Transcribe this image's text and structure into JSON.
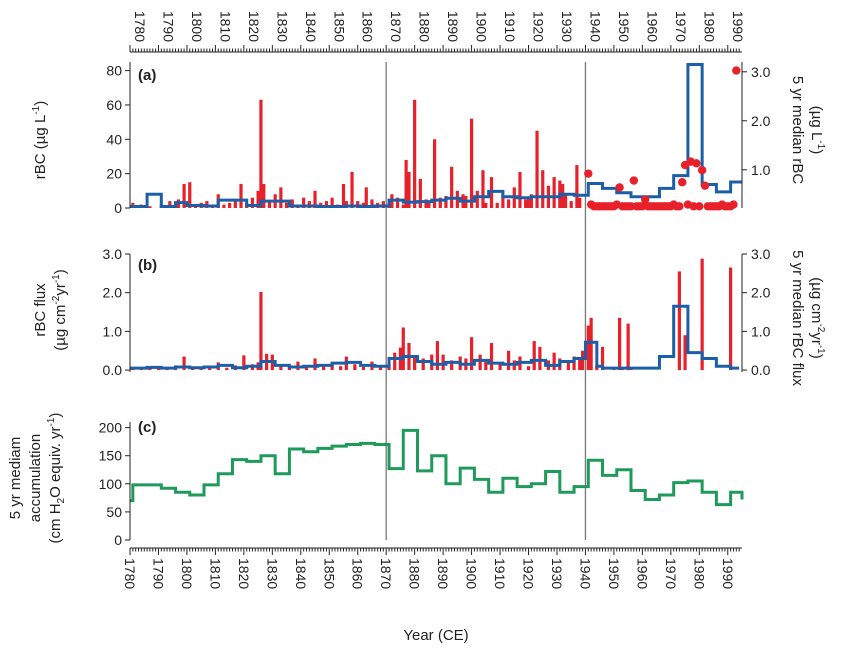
{
  "chart_data": {
    "type": "line",
    "xlabel": "Year (CE)",
    "xlim": [
      1780,
      1995
    ],
    "x_ticks": [
      "1780",
      "1790",
      "1800",
      "1810",
      "1820",
      "1830",
      "1840",
      "1850",
      "1860",
      "1870",
      "1880",
      "1890",
      "1900",
      "1910",
      "1920",
      "1930",
      "1940",
      "1950",
      "1960",
      "1970",
      "1980",
      "1990"
    ],
    "vlines": [
      1870,
      1940
    ],
    "colors": {
      "rbc": "#e8202a",
      "median": "#1b5fa8",
      "accum": "#1e9a5a"
    },
    "panels": [
      {
        "tag": "(a)",
        "ylabel_left": "rBC (µg L",
        "ylabel_left_sup": "-1",
        "ylabel_left_end": ")",
        "ylabel_right_1": "5 yr median rBC",
        "ylabel_right_2": "(µg L",
        "ylabel_right_2_sup": "-1",
        "ylabel_right_2_end": ")",
        "ylim_left": [
          0,
          85
        ],
        "yticks_left": [
          "0",
          "20",
          "40",
          "60",
          "80"
        ],
        "ylim_right": [
          0.22,
          3.2
        ],
        "yticks_right": [
          "1.0",
          "2.0",
          "3.0"
        ],
        "series": [
          {
            "kind": "bars",
            "axis": "left",
            "x": [
              1781,
              1784,
              1787,
              1791,
              1794,
              1797,
              1799,
              1801,
              1803,
              1805,
              1807,
              1809,
              1811,
              1813,
              1815,
              1817,
              1819,
              1821,
              1823,
              1825,
              1826,
              1827,
              1829,
              1831,
              1833,
              1835,
              1837,
              1839,
              1841,
              1843,
              1845,
              1847,
              1849,
              1851,
              1853,
              1855,
              1856,
              1858,
              1860,
              1862,
              1863,
              1865,
              1867,
              1869,
              1871,
              1872,
              1874,
              1876,
              1877,
              1878,
              1880,
              1882,
              1884,
              1885,
              1887,
              1889,
              1891,
              1893,
              1895,
              1897,
              1898,
              1900,
              1902,
              1904,
              1905,
              1907,
              1909,
              1911,
              1913,
              1915,
              1917,
              1919,
              1920,
              1921,
              1923,
              1925,
              1927,
              1929,
              1931,
              1932,
              1933,
              1935,
              1937,
              1938
            ],
            "y": [
              3,
              2,
              1,
              2,
              4,
              5,
              14,
              15,
              2,
              3,
              4,
              2,
              8,
              2,
              3,
              5,
              14,
              3,
              6,
              10,
              63,
              14,
              4,
              8,
              12,
              3,
              5,
              2,
              6,
              4,
              10,
              3,
              4,
              6,
              2,
              14,
              4,
              21,
              4,
              3,
              12,
              5,
              3,
              4,
              3,
              8,
              6,
              2,
              28,
              21,
              63,
              17,
              5,
              3,
              40,
              6,
              7,
              24,
              10,
              8,
              7,
              52,
              10,
              22,
              3,
              18,
              3,
              8,
              5,
              12,
              21,
              5,
              6,
              8,
              45,
              22,
              13,
              18,
              16,
              14,
              8,
              4,
              25,
              6
            ],
            "series_color": "rbc"
          },
          {
            "kind": "points",
            "axis": "left",
            "x": [
              1941,
              1942,
              1943,
              1944,
              1945,
              1946,
              1947,
              1948,
              1949,
              1950,
              1951,
              1952,
              1953,
              1954,
              1955,
              1956,
              1957,
              1958,
              1959,
              1960,
              1961,
              1962,
              1963,
              1964,
              1965,
              1966,
              1967,
              1968,
              1969,
              1970,
              1971,
              1972,
              1973,
              1974,
              1975,
              1976,
              1977,
              1978,
              1979,
              1980,
              1981,
              1982,
              1983,
              1984,
              1985,
              1986,
              1987,
              1988,
              1989,
              1990,
              1991,
              1992,
              1993
            ],
            "y": [
              20,
              2,
              1,
              1,
              1,
              1,
              1,
              1,
              1,
              1,
              2,
              12,
              1,
              1,
              1,
              1,
              16,
              1,
              1,
              1,
              5,
              1,
              1,
              1,
              1,
              1,
              1,
              1,
              1,
              1,
              2,
              1,
              1,
              15,
              25,
              2,
              27,
              1,
              26,
              1,
              22,
              13,
              1,
              1,
              1,
              1,
              1,
              2,
              1,
              1,
              1,
              2,
              80
            ],
            "series_color": "rbc"
          },
          {
            "kind": "step",
            "axis": "right",
            "x": [
              1780,
              1782,
              1786,
              1791,
              1796,
              1800,
              1806,
              1811,
              1816,
              1821,
              1826,
              1831,
              1836,
              1841,
              1846,
              1851,
              1856,
              1861,
              1866,
              1871,
              1876,
              1881,
              1886,
              1891,
              1896,
              1901,
              1906,
              1911,
              1916,
              1921,
              1926,
              1931,
              1936,
              1941,
              1946,
              1951,
              1956,
              1961,
              1966,
              1971,
              1976,
              1981,
              1986,
              1991,
              1995
            ],
            "y": [
              0.25,
              0.25,
              0.5,
              0.25,
              0.33,
              0.27,
              0.26,
              0.38,
              0.38,
              0.27,
              0.36,
              0.36,
              0.26,
              0.26,
              0.25,
              0.25,
              0.26,
              0.25,
              0.26,
              0.38,
              0.34,
              0.35,
              0.38,
              0.42,
              0.36,
              0.45,
              0.56,
              0.45,
              0.43,
              0.45,
              0.45,
              0.5,
              0.48,
              0.72,
              0.62,
              0.53,
              0.45,
              0.45,
              0.62,
              0.88,
              3.15,
              0.7,
              0.55,
              0.75,
              0.75
            ],
            "series_color": "median"
          }
        ]
      },
      {
        "tag": "(b)",
        "ylabel_left_1": "rBC flux",
        "ylabel_left_2": "(µg cm",
        "ylabel_left_2_sup1": "-2",
        "ylabel_left_2_mid": "yr",
        "ylabel_left_2_sup2": "-1",
        "ylabel_left_2_end": ")",
        "ylabel_right_1": "5 yr median rBC flux",
        "ylabel_right_2": "(µg cm",
        "ylabel_right_2_sup1": "-2",
        "ylabel_right_2_mid": "yr",
        "ylabel_right_2_sup2": "-1",
        "ylabel_right_2_end": ")",
        "ylim_left": [
          -0.05,
          3.0
        ],
        "yticks_left": [
          "0.0",
          "1.0",
          "2.0",
          "3.0"
        ],
        "ylim_right": [
          -0.05,
          3.0
        ],
        "yticks_right": [
          "0.0",
          "1.0",
          "2.0",
          "3.0"
        ],
        "series": [
          {
            "kind": "bars",
            "axis": "left",
            "x": [
              1781,
              1784,
              1787,
              1790,
              1793,
              1796,
              1799,
              1802,
              1805,
              1808,
              1811,
              1814,
              1817,
              1820,
              1823,
              1825,
              1826,
              1828,
              1830,
              1833,
              1836,
              1839,
              1842,
              1845,
              1848,
              1851,
              1854,
              1856,
              1859,
              1862,
              1865,
              1868,
              1871,
              1873,
              1875,
              1876,
              1878,
              1880,
              1883,
              1886,
              1888,
              1890,
              1893,
              1896,
              1898,
              1900,
              1903,
              1905,
              1907,
              1910,
              1913,
              1915,
              1917,
              1920,
              1922,
              1924,
              1927,
              1929,
              1931,
              1934,
              1936,
              1938,
              1939,
              1941,
              1942,
              1944,
              1946,
              1950,
              1952,
              1953,
              1955,
              1956,
              1973,
              1975,
              1981,
              1991
            ],
            "y": [
              0.05,
              0.03,
              0.06,
              0.1,
              0.05,
              0.12,
              0.35,
              0.08,
              0.06,
              0.1,
              0.2,
              0.06,
              0.12,
              0.38,
              0.15,
              0.2,
              2.02,
              0.42,
              0.4,
              0.1,
              0.08,
              0.22,
              0.12,
              0.3,
              0.1,
              0.18,
              0.1,
              0.35,
              0.15,
              0.08,
              0.22,
              0.1,
              0.15,
              0.45,
              0.58,
              1.1,
              0.7,
              0.35,
              0.3,
              0.4,
              0.75,
              0.4,
              0.25,
              0.35,
              0.3,
              0.85,
              0.4,
              0.25,
              0.7,
              0.15,
              0.5,
              0.25,
              0.35,
              0.1,
              0.75,
              0.6,
              0.25,
              0.45,
              0.3,
              0.2,
              0.35,
              0.3,
              0.5,
              1.15,
              1.35,
              0.1,
              0.6,
              0.05,
              1.35,
              0.05,
              1.2,
              0.05,
              2.55,
              0.9,
              2.88,
              2.65
            ],
            "series_color": "rbc"
          },
          {
            "kind": "step",
            "axis": "right",
            "x": [
              1780,
              1786,
              1791,
              1796,
              1801,
              1806,
              1811,
              1816,
              1821,
              1826,
              1831,
              1836,
              1841,
              1846,
              1851,
              1856,
              1861,
              1866,
              1871,
              1876,
              1881,
              1886,
              1891,
              1896,
              1901,
              1906,
              1911,
              1916,
              1921,
              1926,
              1931,
              1936,
              1940,
              1944,
              1946,
              1951,
              1956,
              1961,
              1966,
              1971,
              1976,
              1981,
              1986,
              1991,
              1994
            ],
            "y": [
              0.05,
              0.07,
              0.05,
              0.08,
              0.06,
              0.08,
              0.12,
              0.06,
              0.1,
              0.22,
              0.12,
              0.08,
              0.1,
              0.12,
              0.18,
              0.2,
              0.12,
              0.1,
              0.3,
              0.35,
              0.22,
              0.15,
              0.2,
              0.15,
              0.25,
              0.18,
              0.15,
              0.2,
              0.25,
              0.12,
              0.22,
              0.3,
              0.72,
              0.1,
              0.05,
              0.05,
              0.05,
              0.05,
              0.35,
              1.65,
              0.45,
              0.3,
              0.1,
              0.05,
              0.05
            ],
            "series_color": "median"
          }
        ]
      },
      {
        "tag": "(c)",
        "ylabel_left_1": "5 yr mediam",
        "ylabel_left_2": "accumulation",
        "ylabel_left_3": "(cm H",
        "ylabel_left_3_sub": "2",
        "ylabel_left_3_mid": "O equiv. yr",
        "ylabel_left_3_sup": "-1",
        "ylabel_left_3_end": ")",
        "ylim_left": [
          0,
          210
        ],
        "yticks_left": [
          "0",
          "50",
          "100",
          "150",
          "200"
        ],
        "series": [
          {
            "kind": "step",
            "axis": "left",
            "x": [
              1780,
              1781,
              1786,
              1791,
              1796,
              1801,
              1806,
              1811,
              1816,
              1821,
              1826,
              1831,
              1836,
              1841,
              1846,
              1851,
              1856,
              1861,
              1866,
              1871,
              1876,
              1881,
              1886,
              1891,
              1896,
              1901,
              1906,
              1911,
              1916,
              1921,
              1926,
              1931,
              1936,
              1941,
              1946,
              1951,
              1956,
              1961,
              1966,
              1971,
              1976,
              1981,
              1986,
              1991,
              1995
            ],
            "y": [
              70,
              98,
              98,
              92,
              85,
              80,
              98,
              118,
              143,
              140,
              150,
              118,
              162,
              157,
              163,
              167,
              170,
              172,
              170,
              127,
              195,
              123,
              150,
              100,
              128,
              108,
              85,
              110,
              95,
              100,
              122,
              85,
              95,
              142,
              115,
              125,
              88,
              72,
              80,
              102,
              105,
              85,
              63,
              85,
              72
            ],
            "series_color": "accum"
          }
        ]
      }
    ]
  }
}
